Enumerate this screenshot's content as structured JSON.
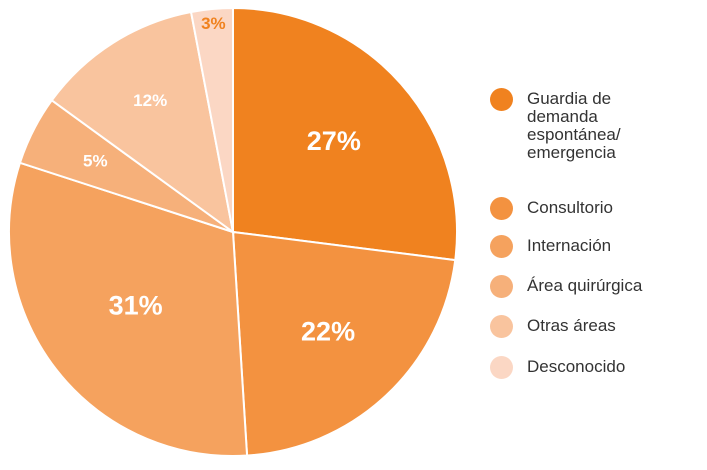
{
  "chart_data": {
    "type": "pie",
    "categories": [
      "Guardia de demanda espontánea/ emergencia",
      "Consultorio",
      "Internación",
      "Área quirúrgica",
      "Otras áreas",
      "Desconocido"
    ],
    "values": [
      27,
      22,
      31,
      5,
      12,
      3
    ],
    "value_labels": [
      "27%",
      "22%",
      "31%",
      "5%",
      "12%",
      "3%"
    ],
    "colors": [
      "#f0821f",
      "#f39240",
      "#f5a25e",
      "#f6b07a",
      "#f9c49e",
      "#fbd7c4"
    ],
    "legend": "right"
  }
}
